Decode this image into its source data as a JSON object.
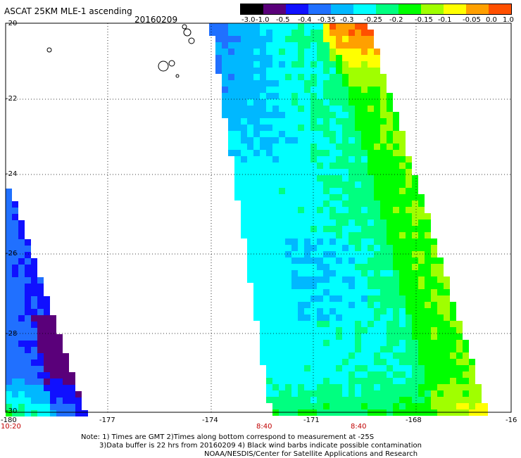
{
  "header": {
    "title": "ASCAT 25KM MLE-1 ascending",
    "date": "20160209"
  },
  "colorbar": {
    "labels": [
      "-3.0",
      "-1.0",
      "-0.5",
      "-0.4",
      "-0.35",
      "-0.3",
      "-0.25",
      "-0.2",
      "-0.15",
      "-0.1",
      "-0.05",
      "0.0",
      "1.0"
    ],
    "colors": [
      "#000000",
      "#5a007a",
      "#1010ff",
      "#2070ff",
      "#00b8ff",
      "#00ffff",
      "#00ff80",
      "#00ff00",
      "#a0ff00",
      "#ffff00",
      "#ffa000",
      "#ff5000"
    ]
  },
  "map": {
    "lat_labels": [
      "-20",
      "-22",
      "-24",
      "-26",
      "-28",
      "-30"
    ],
    "lon_labels": [
      "-180",
      "-177",
      "-174",
      "-171",
      "-168",
      "-16"
    ],
    "pass_times": [
      "10:20",
      "8:40",
      "8:40"
    ]
  },
  "notes": {
    "line1": "Note: 1) Times are GMT 2)Times along bottom correspond to measurement at -25S",
    "line2": "3)Data buffer is 22 hrs from 20160209 4) Black wind barbs indicate possible contamination",
    "line3": "NOAA/NESDIS/Center for Satellite Applications and Research"
  }
}
